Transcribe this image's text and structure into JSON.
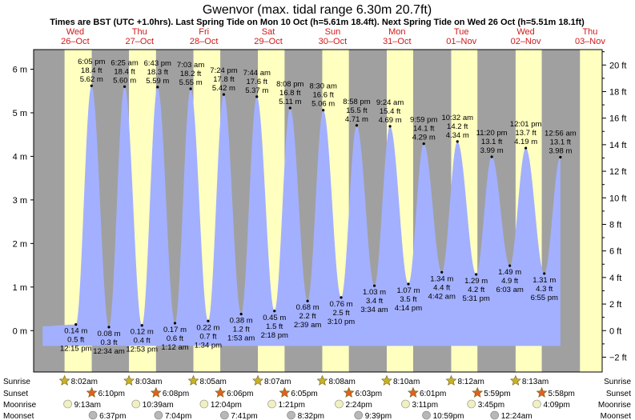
{
  "chart_data": {
    "type": "area",
    "title": "Gwenvor (max. tidal range 6.30m 20.7ft)",
    "subtitle": "Times are BST (UTC +1.0hrs). Last Spring Tide on Mon 10 Oct (h=5.61m 18.4ft). Next Spring Tide on Wed 26 Oct (h=5.51m 18.1ft)",
    "y_left": {
      "unit": "m",
      "range": [
        -0.95,
        6.45
      ],
      "ticks": [
        {
          "v": 0,
          "label": "0 m"
        },
        {
          "v": 1,
          "label": "1 m"
        },
        {
          "v": 2,
          "label": "2 m"
        },
        {
          "v": 3,
          "label": "3 m"
        },
        {
          "v": 4,
          "label": "4 m"
        },
        {
          "v": 5,
          "label": "5 m"
        },
        {
          "v": 6,
          "label": "6 m"
        }
      ]
    },
    "y_right": {
      "unit": "ft",
      "ticks": [
        {
          "v": -2,
          "label": "−2 ft"
        },
        {
          "v": 0,
          "label": "0 ft"
        },
        {
          "v": 2,
          "label": "2 ft"
        },
        {
          "v": 4,
          "label": "4 ft"
        },
        {
          "v": 6,
          "label": "6 ft"
        },
        {
          "v": 8,
          "label": "8 ft"
        },
        {
          "v": 10,
          "label": "10 ft"
        },
        {
          "v": 12,
          "label": "12 ft"
        },
        {
          "v": 14,
          "label": "14 ft"
        },
        {
          "v": 16,
          "label": "16 ft"
        },
        {
          "v": 18,
          "label": "18 ft"
        },
        {
          "v": 20,
          "label": "20 ft"
        }
      ]
    },
    "x_range_hours": [
      -3.5,
      208.5
    ],
    "days": [
      {
        "name": "Wed",
        "date": "26–Oct"
      },
      {
        "name": "Thu",
        "date": "27–Oct"
      },
      {
        "name": "Fri",
        "date": "28–Oct"
      },
      {
        "name": "Sat",
        "date": "29–Oct"
      },
      {
        "name": "Sun",
        "date": "30–Oct"
      },
      {
        "name": "Mon",
        "date": "31–Oct"
      },
      {
        "name": "Tue",
        "date": "01–Nov"
      },
      {
        "name": "Wed",
        "date": "02–Nov"
      },
      {
        "name": "Thu",
        "date": "03–Nov"
      }
    ],
    "series": [
      {
        "type": "high",
        "time": "6:05 pm",
        "ft": "18.4 ft",
        "m": "5.62 m",
        "h": 18.08,
        "v": 5.62
      },
      {
        "type": "high",
        "time": "6:25 am",
        "ft": "18.4 ft",
        "m": "5.60 m",
        "h": 30.42,
        "v": 5.6
      },
      {
        "type": "high",
        "time": "6:43 pm",
        "ft": "18.3 ft",
        "m": "5.59 m",
        "h": 42.72,
        "v": 5.59
      },
      {
        "type": "high",
        "time": "7:03 am",
        "ft": "18.2 ft",
        "m": "5.55 m",
        "h": 55.05,
        "v": 5.55
      },
      {
        "type": "high",
        "time": "7:24 pm",
        "ft": "17.8 ft",
        "m": "5.42 m",
        "h": 67.4,
        "v": 5.42
      },
      {
        "type": "high",
        "time": "7:44 am",
        "ft": "17.6 ft",
        "m": "5.37 m",
        "h": 79.73,
        "v": 5.37
      },
      {
        "type": "high",
        "time": "8:08 pm",
        "ft": "16.8 ft",
        "m": "5.11 m",
        "h": 92.13,
        "v": 5.11
      },
      {
        "type": "high",
        "time": "8:30 am",
        "ft": "16.6 ft",
        "m": "5.06 m",
        "h": 104.5,
        "v": 5.06
      },
      {
        "type": "high",
        "time": "8:58 pm",
        "ft": "15.5 ft",
        "m": "4.71 m",
        "h": 116.97,
        "v": 4.71
      },
      {
        "type": "high",
        "time": "9:24 am",
        "ft": "15.4 ft",
        "m": "4.69 m",
        "h": 129.4,
        "v": 4.69
      },
      {
        "type": "high",
        "time": "9:59 pm",
        "ft": "14.1 ft",
        "m": "4.29 m",
        "h": 141.98,
        "v": 4.29
      },
      {
        "type": "high",
        "time": "10:32 am",
        "ft": "14.2 ft",
        "m": "4.34 m",
        "h": 154.53,
        "v": 4.34
      },
      {
        "type": "high",
        "time": "11:20 pm",
        "ft": "13.1 ft",
        "m": "3.99 m",
        "h": 167.33,
        "v": 3.99
      },
      {
        "type": "high",
        "time": "12:01 pm",
        "ft": "13.7 ft",
        "m": "4.19 m",
        "h": 180.02,
        "v": 4.19
      },
      {
        "type": "high",
        "time": "12:56 am",
        "ft": "13.1 ft",
        "m": "3.98 m",
        "h": 192.93,
        "v": 3.98
      },
      {
        "type": "low",
        "time": "12:15 pm",
        "ft": "0.5 ft",
        "m": "0.14 m",
        "h": 12.25,
        "v": 0.14
      },
      {
        "type": "low",
        "time": "12:34 am",
        "ft": "0.3 ft",
        "m": "0.08 m",
        "h": 24.57,
        "v": 0.08
      },
      {
        "type": "low",
        "time": "12:53 pm",
        "ft": "0.4 ft",
        "m": "0.12 m",
        "h": 36.88,
        "v": 0.12
      },
      {
        "type": "low",
        "time": "1:12 am",
        "ft": "0.6 ft",
        "m": "0.17 m",
        "h": 49.2,
        "v": 0.17
      },
      {
        "type": "low",
        "time": "1:34 pm",
        "ft": "0.7 ft",
        "m": "0.22 m",
        "h": 61.57,
        "v": 0.22
      },
      {
        "type": "low",
        "time": "1:53 am",
        "ft": "1.2 ft",
        "m": "0.38 m",
        "h": 73.88,
        "v": 0.38
      },
      {
        "type": "low",
        "time": "2:18 pm",
        "ft": "1.5 ft",
        "m": "0.45 m",
        "h": 86.3,
        "v": 0.45
      },
      {
        "type": "low",
        "time": "2:39 am",
        "ft": "2.2 ft",
        "m": "0.68 m",
        "h": 98.65,
        "v": 0.68
      },
      {
        "type": "low",
        "time": "3:10 pm",
        "ft": "2.5 ft",
        "m": "0.76 m",
        "h": 111.17,
        "v": 0.76
      },
      {
        "type": "low",
        "time": "3:34 am",
        "ft": "3.4 ft",
        "m": "1.03 m",
        "h": 123.57,
        "v": 1.03
      },
      {
        "type": "low",
        "time": "4:14 pm",
        "ft": "3.5 ft",
        "m": "1.07 m",
        "h": 136.23,
        "v": 1.07
      },
      {
        "type": "low",
        "time": "4:42 am",
        "ft": "4.4 ft",
        "m": "1.34 m",
        "h": 148.7,
        "v": 1.34
      },
      {
        "type": "low",
        "time": "5:31 pm",
        "ft": "4.2 ft",
        "m": "1.29 m",
        "h": 161.52,
        "v": 1.29
      },
      {
        "type": "low",
        "time": "6:03 am",
        "ft": "4.9 ft",
        "m": "1.49 m",
        "h": 174.05,
        "v": 1.49
      },
      {
        "type": "low",
        "time": "6:55 pm",
        "ft": "4.3 ft",
        "m": "1.31 m",
        "h": 186.92,
        "v": 1.31
      }
    ],
    "row_labels": {
      "sunrise": "Sunrise",
      "sunset": "Sunset",
      "moonrise": "Moonrise",
      "moonset": "Moonset"
    },
    "sunrise": [
      {
        "time": "8:02am",
        "h": 8.03
      },
      {
        "time": "8:03am",
        "h": 32.05
      },
      {
        "time": "8:05am",
        "h": 56.08
      },
      {
        "time": "8:07am",
        "h": 80.12
      },
      {
        "time": "8:08am",
        "h": 104.13
      },
      {
        "time": "8:10am",
        "h": 128.17
      },
      {
        "time": "8:12am",
        "h": 152.2
      },
      {
        "time": "8:13am",
        "h": 176.22
      }
    ],
    "sunset": [
      {
        "time": "6:10pm",
        "h": 18.17
      },
      {
        "time": "6:08pm",
        "h": 42.13
      },
      {
        "time": "6:06pm",
        "h": 66.1
      },
      {
        "time": "6:05pm",
        "h": 90.08
      },
      {
        "time": "6:03pm",
        "h": 114.05
      },
      {
        "time": "6:01pm",
        "h": 138.02
      },
      {
        "time": "5:59pm",
        "h": 161.98
      },
      {
        "time": "5:58pm",
        "h": 185.97
      }
    ],
    "moonrise": [
      {
        "time": "9:13am",
        "h": 9.22
      },
      {
        "time": "10:39am",
        "h": 34.65
      },
      {
        "time": "12:04pm",
        "h": 60.07
      },
      {
        "time": "1:21pm",
        "h": 85.35
      },
      {
        "time": "2:24pm",
        "h": 110.4
      },
      {
        "time": "3:11pm",
        "h": 135.18
      },
      {
        "time": "3:45pm",
        "h": 159.75
      },
      {
        "time": "4:09pm",
        "h": 184.15
      }
    ],
    "moonset": [
      {
        "time": "6:37pm",
        "h": 18.62
      },
      {
        "time": "7:04pm",
        "h": 43.07
      },
      {
        "time": "7:41pm",
        "h": 67.68
      },
      {
        "time": "8:32pm",
        "h": 92.53
      },
      {
        "time": "9:39pm",
        "h": 117.65
      },
      {
        "time": "10:59pm",
        "h": 142.98
      },
      {
        "time": "12:24am",
        "h": 168.4
      }
    ],
    "colors": {
      "night": "#a0a0a0",
      "day": "#ffffc0",
      "water": "#a3b0ff",
      "label": "#d01818",
      "sun": "#c8b028",
      "sunset": "#e06020",
      "moon": "#f0f0c0",
      "moonset": "#b8b8b8"
    }
  }
}
